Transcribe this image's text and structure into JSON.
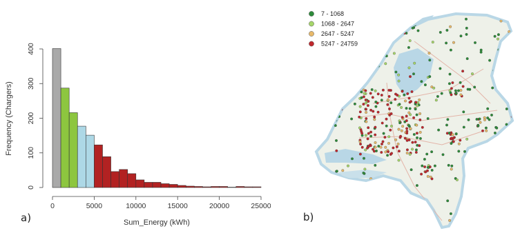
{
  "chart_data": [
    {
      "type": "bar",
      "panel_label": "a)",
      "xlabel": "Sum_Energy (kWh)",
      "ylabel": "Frequency (Chargers)",
      "xlim": [
        0,
        25000
      ],
      "ylim": [
        0,
        400
      ],
      "x_ticks": [
        0,
        5000,
        10000,
        15000,
        20000,
        25000
      ],
      "y_ticks": [
        0,
        100,
        200,
        300,
        400
      ],
      "bin_width": 1000,
      "bins": [
        {
          "x0": 0,
          "x1": 1000,
          "count": 401,
          "color": "#a9a9a9"
        },
        {
          "x0": 1000,
          "x1": 2000,
          "count": 287,
          "color": "#8dc63f"
        },
        {
          "x0": 2000,
          "x1": 3000,
          "count": 216,
          "color": "#8dc63f"
        },
        {
          "x0": 3000,
          "x1": 4000,
          "count": 177,
          "color": "#add8e6"
        },
        {
          "x0": 4000,
          "x1": 5000,
          "count": 151,
          "color": "#add8e6"
        },
        {
          "x0": 5000,
          "x1": 6000,
          "count": 123,
          "color": "#b22222"
        },
        {
          "x0": 6000,
          "x1": 7000,
          "count": 89,
          "color": "#b22222"
        },
        {
          "x0": 7000,
          "x1": 8000,
          "count": 46,
          "color": "#b22222"
        },
        {
          "x0": 8000,
          "x1": 9000,
          "count": 52,
          "color": "#b22222"
        },
        {
          "x0": 9000,
          "x1": 10000,
          "count": 40,
          "color": "#b22222"
        },
        {
          "x0": 10000,
          "x1": 11000,
          "count": 22,
          "color": "#b22222"
        },
        {
          "x0": 11000,
          "x1": 12000,
          "count": 15,
          "color": "#b22222"
        },
        {
          "x0": 12000,
          "x1": 13000,
          "count": 15,
          "color": "#b22222"
        },
        {
          "x0": 13000,
          "x1": 14000,
          "count": 11,
          "color": "#b22222"
        },
        {
          "x0": 14000,
          "x1": 15000,
          "count": 9,
          "color": "#b22222"
        },
        {
          "x0": 15000,
          "x1": 16000,
          "count": 6,
          "color": "#b22222"
        },
        {
          "x0": 16000,
          "x1": 17000,
          "count": 4,
          "color": "#b22222"
        },
        {
          "x0": 17000,
          "x1": 18000,
          "count": 3,
          "color": "#b22222"
        },
        {
          "x0": 18000,
          "x1": 19000,
          "count": 2,
          "color": "#b22222"
        },
        {
          "x0": 19000,
          "x1": 20000,
          "count": 3,
          "color": "#b22222"
        },
        {
          "x0": 20000,
          "x1": 21000,
          "count": 3,
          "color": "#b22222"
        },
        {
          "x0": 21000,
          "x1": 22000,
          "count": 1,
          "color": "#b22222"
        },
        {
          "x0": 22000,
          "x1": 23000,
          "count": 3,
          "color": "#b22222"
        },
        {
          "x0": 23000,
          "x1": 24000,
          "count": 2,
          "color": "#b22222"
        },
        {
          "x0": 24000,
          "x1": 25000,
          "count": 2,
          "color": "#b22222"
        }
      ]
    },
    {
      "type": "map",
      "panel_label": "b)",
      "legend": [
        {
          "label": "7 - 1068",
          "color": "#2e8b3a"
        },
        {
          "label": "1068 - 2647",
          "color": "#a6d66a"
        },
        {
          "label": "2647 - 5247",
          "color": "#e8b96a"
        },
        {
          "label": "5247 - 24759",
          "color": "#c0282d"
        }
      ]
    }
  ]
}
